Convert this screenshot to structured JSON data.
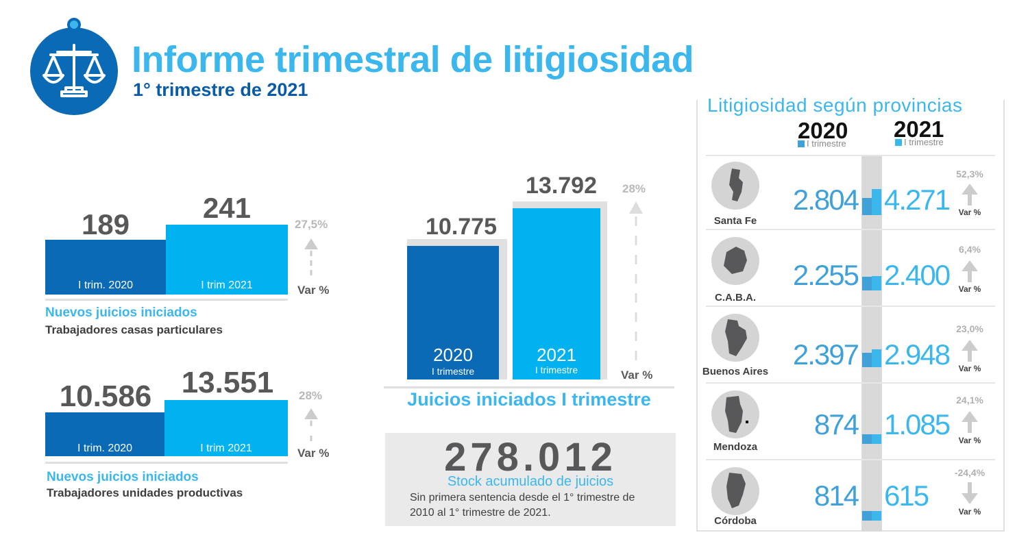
{
  "header": {
    "title": "Informe trimestral de litigiosidad",
    "subtitle": "1° trimestre de 2021"
  },
  "colors": {
    "dark_blue": "#0a6ab5",
    "light_blue": "#00b2ef",
    "title_blue": "#3cb7ee",
    "grey_text": "#58585a"
  },
  "icons": [
    "scales-of-justice-icon",
    "arrow-up-icon",
    "arrow-down-icon"
  ],
  "chart_data": [
    {
      "type": "bar",
      "categories": [
        "I trim. 2020",
        "I trim 2021"
      ],
      "values": [
        189,
        241
      ],
      "value_labels": [
        "189",
        "241"
      ],
      "variation": "27,5%",
      "variation_label": "Var %",
      "caption_title": "Nuevos juicios iniciados",
      "caption_sub": "Trabajadores casas particulares"
    },
    {
      "type": "bar",
      "categories": [
        "I trim. 2020",
        "I trim 2021"
      ],
      "values": [
        10586,
        13551
      ],
      "value_labels": [
        "10.586",
        "13.551"
      ],
      "variation": "28%",
      "variation_label": "Var %",
      "caption_title": "Nuevos juicios iniciados",
      "caption_sub": "Trabajadores unidades productivas"
    },
    {
      "type": "bar",
      "categories": [
        "2020",
        "2021"
      ],
      "category_sub": "I trimestre",
      "values": [
        10775,
        13792
      ],
      "value_labels": [
        "10.775",
        "13.792"
      ],
      "variation": "28%",
      "variation_label": "Var %",
      "title": "Juicios iniciados I trimestre"
    },
    {
      "type": "table",
      "title": "Litigiosidad según provincias",
      "columns": [
        {
          "year": "2020",
          "sub": "I trimestre"
        },
        {
          "year": "2021",
          "sub": "I trimestre"
        }
      ],
      "variation_label": "Var %",
      "rows": [
        {
          "province": "Santa Fe",
          "v2020": 2804,
          "v2021": 4271,
          "v2020_label": "2.804",
          "v2021_label": "4.271",
          "variation": "52,3%",
          "direction": "up",
          "map_icon": "santa-fe-map-icon"
        },
        {
          "province": "C.A.B.A.",
          "v2020": 2255,
          "v2021": 2400,
          "v2020_label": "2.255",
          "v2021_label": "2.400",
          "variation": "6,4%",
          "direction": "up",
          "map_icon": "caba-map-icon"
        },
        {
          "province": "Buenos Aires",
          "v2020": 2397,
          "v2021": 2948,
          "v2020_label": "2.397",
          "v2021_label": "2.948",
          "variation": "23,0%",
          "direction": "up",
          "map_icon": "buenos-aires-map-icon"
        },
        {
          "province": "Mendoza",
          "v2020": 874,
          "v2021": 1085,
          "v2020_label": "874",
          "v2021_label": "1.085",
          "variation": "24,1%",
          "direction": "up",
          "map_icon": "mendoza-map-icon"
        },
        {
          "province": "Córdoba",
          "v2020": 814,
          "v2021": 615,
          "v2020_label": "814",
          "v2021_label": "615",
          "variation": "-24,4%",
          "direction": "down",
          "map_icon": "cordoba-map-icon"
        }
      ]
    }
  ],
  "stock": {
    "value": "278.012",
    "label": "Stock acumulado de juicios",
    "note_line1": "Sin primera sentencia desde el 1° trimestre de",
    "note_line2": "2010 al 1° trimestre de 2021."
  }
}
